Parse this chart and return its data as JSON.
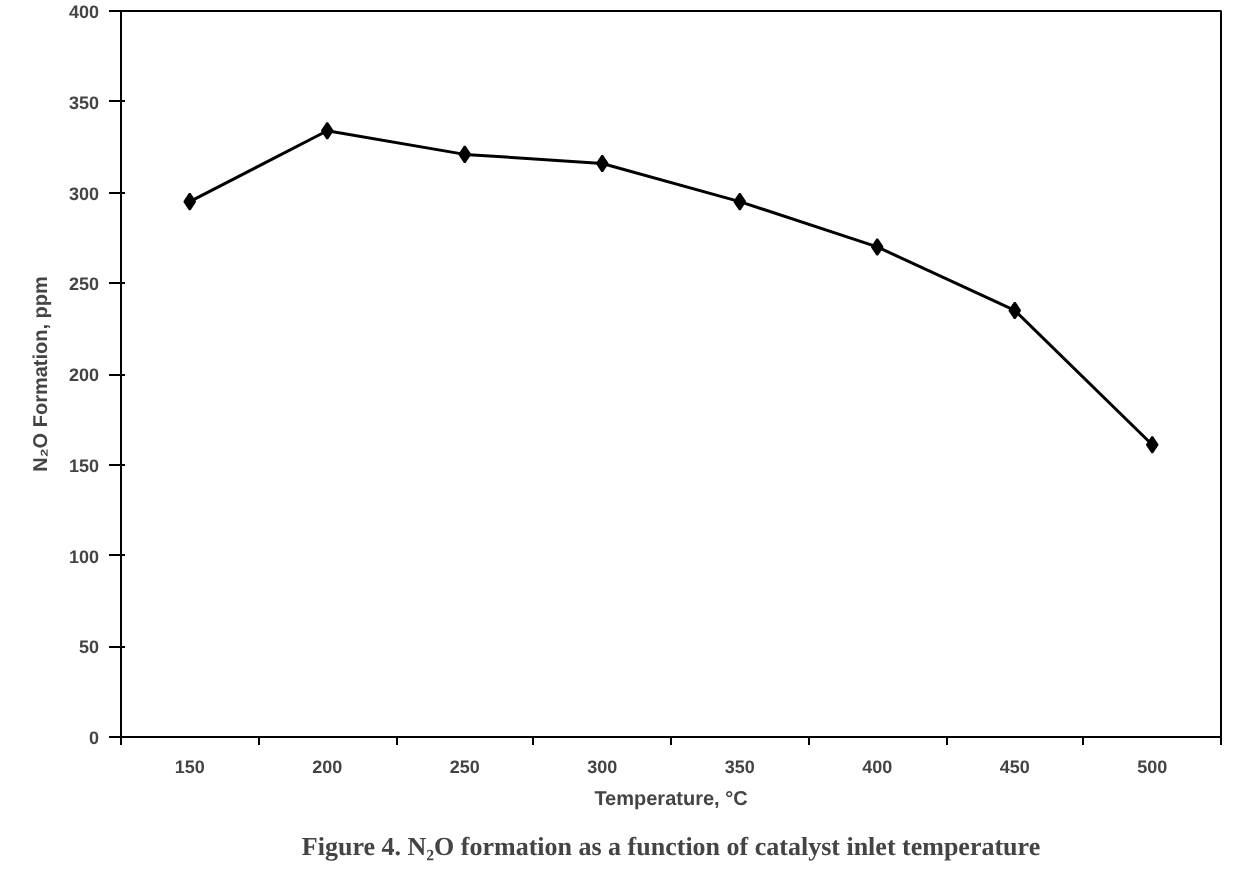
{
  "chart_data": {
    "type": "line",
    "ylabel": "N₂O Formation, ppm",
    "xlabel": "Temperature, °C",
    "annotations": [
      "Figure 4. N₂O formation as a function of catalyst inlet temperature"
    ],
    "categories": [
      "150",
      "200",
      "250",
      "300",
      "350",
      "400",
      "450",
      "500"
    ],
    "series": [
      {
        "color": "#000000",
        "values": [
          295,
          334,
          321,
          316,
          295,
          270,
          235,
          161
        ]
      }
    ],
    "ylim": [
      0,
      400
    ],
    "yticks": [
      0,
      50,
      100,
      150,
      200,
      250,
      300,
      350,
      400
    ],
    "grid": false,
    "marker": "diamond",
    "line_style": "solid"
  }
}
